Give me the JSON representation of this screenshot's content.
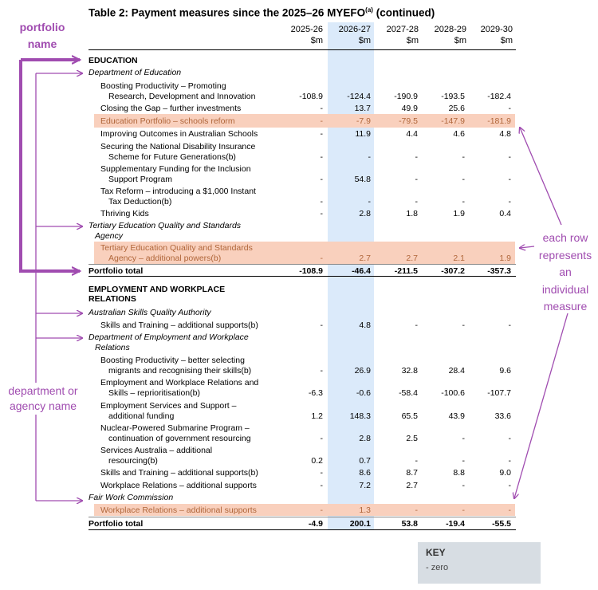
{
  "title": "Table 2: Payment measures since the 2025–26 MYEFO",
  "title_sup": "(a)",
  "title_suffix": " (continued)",
  "columns": [
    {
      "year": "2025-26",
      "unit": "$m"
    },
    {
      "year": "2026-27",
      "unit": "$m"
    },
    {
      "year": "2027-28",
      "unit": "$m"
    },
    {
      "year": "2028-29",
      "unit": "$m"
    },
    {
      "year": "2029-30",
      "unit": "$m"
    }
  ],
  "sections": {
    "education": "EDUCATION",
    "education_dept": "Department of Education",
    "teqsa_dept_1": "Tertiary Education Quality and Standards",
    "teqsa_dept_2": "Agency",
    "employment_1": "EMPLOYMENT AND WORKPLACE",
    "employment_2": "RELATIONS",
    "asqa_dept": "Australian Skills Quality Authority",
    "dewr_dept_1": "Department of Employment and Workplace",
    "dewr_dept_2": "Relations",
    "fwc_dept": "Fair Work Commission"
  },
  "rows": [
    {
      "l1": "Boosting Productivity – Promoting",
      "l2": "Research, Development and Innovation",
      "v": [
        "-108.9",
        "-124.4",
        "-190.9",
        "-193.5",
        "-182.4"
      ]
    },
    {
      "l1": "Closing the Gap – further investments",
      "v": [
        "-",
        "13.7",
        "49.9",
        "25.6",
        "-"
      ]
    },
    {
      "l1": "Education Portfolio – schools reform",
      "v": [
        "-",
        "-7.9",
        "-79.5",
        "-147.9",
        "-181.9"
      ]
    },
    {
      "l1": "Improving Outcomes in Australian Schools",
      "v": [
        "-",
        "11.9",
        "4.4",
        "4.6",
        "4.8"
      ]
    },
    {
      "l1": "Securing the National Disability Insurance",
      "l2": "Scheme for Future Generations(b)",
      "v": [
        "-",
        "-",
        "-",
        "-",
        "-"
      ]
    },
    {
      "l1": "Supplementary Funding for the Inclusion",
      "l2": "Support Program",
      "v": [
        "-",
        "54.8",
        "-",
        "-",
        "-"
      ]
    },
    {
      "l1": "Tax Reform – introducing a $1,000 Instant",
      "l2": "Tax Deduction(b)",
      "v": [
        "-",
        "-",
        "-",
        "-",
        "-"
      ]
    },
    {
      "l1": "Thriving Kids",
      "v": [
        "-",
        "2.8",
        "1.8",
        "1.9",
        "0.4"
      ]
    },
    {
      "l1": "Tertiary Education Quality and Standards",
      "l2": "Agency – additional powers(b)",
      "v": [
        "-",
        "2.7",
        "2.7",
        "2.1",
        "1.9"
      ]
    },
    {
      "l1": "Portfolio total",
      "v": [
        "-108.9",
        "-46.4",
        "-211.5",
        "-307.2",
        "-357.3"
      ]
    },
    {
      "l1": "Skills and Training – additional supports(b)",
      "v": [
        "-",
        "4.8",
        "-",
        "-",
        "-"
      ]
    },
    {
      "l1": "Boosting Productivity – better selecting",
      "l2": "migrants and recognising their skills(b)",
      "v": [
        "-",
        "26.9",
        "32.8",
        "28.4",
        "9.6"
      ]
    },
    {
      "l1": "Employment and Workplace Relations and",
      "l2": "Skills – reprioritisation(b)",
      "v": [
        "-6.3",
        "-0.6",
        "-58.4",
        "-100.6",
        "-107.7"
      ]
    },
    {
      "l1": "Employment Services and Support –",
      "l2": "additional funding",
      "v": [
        "1.2",
        "148.3",
        "65.5",
        "43.9",
        "33.6"
      ]
    },
    {
      "l1": "Nuclear-Powered Submarine Program –",
      "l2": "continuation of government resourcing",
      "v": [
        "-",
        "2.8",
        "2.5",
        "-",
        "-"
      ]
    },
    {
      "l1": "Services Australia – additional",
      "l2": "resourcing(b)",
      "v": [
        "0.2",
        "0.7",
        "-",
        "-",
        "-"
      ]
    },
    {
      "l1": "Skills and Training – additional supports(b)",
      "v": [
        "-",
        "8.6",
        "8.7",
        "8.8",
        "9.0"
      ]
    },
    {
      "l1": "Workplace Relations – additional supports",
      "v": [
        "-",
        "7.2",
        "2.7",
        "-",
        "-"
      ]
    },
    {
      "l1": "Workplace Relations – additional supports",
      "v": [
        "-",
        "1.3",
        "-",
        "-",
        "-"
      ]
    },
    {
      "l1": "Portfolio total",
      "v": [
        "-4.9",
        "200.1",
        "53.8",
        "-19.4",
        "-55.5"
      ]
    }
  ],
  "annotations": {
    "portfolio_1": "portfolio",
    "portfolio_2": "name",
    "dept_1": "department or",
    "dept_2": "agency name",
    "measure_1": "each row",
    "measure_2": "represents",
    "measure_3": "an",
    "measure_4": "individual",
    "measure_5": "measure"
  },
  "key": {
    "title": "KEY",
    "item": "-  zero"
  },
  "colors": {
    "accent": "#a04cb0",
    "highlight_column": "#dbeafa",
    "highlight_row": "#f9d0bd"
  }
}
